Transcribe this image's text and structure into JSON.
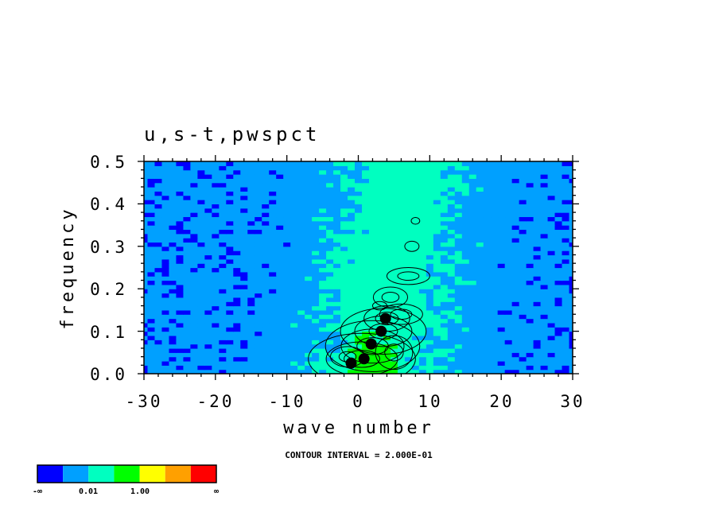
{
  "chart_data": {
    "type": "heatmap",
    "title": "u,s-t,pwspct",
    "xlabel": "wave number",
    "ylabel": "frequency",
    "xlim": [
      -30,
      30
    ],
    "ylim": [
      0.0,
      0.5
    ],
    "x_ticks": [
      "-30",
      "-20",
      "-10",
      "0",
      "10",
      "20",
      "30"
    ],
    "y_ticks": [
      "0.0",
      "0.1",
      "0.2",
      "0.3",
      "0.4",
      "0.5"
    ],
    "contour_interval_text": "CONTOUR INTERVAL = 2.000E-01",
    "colorbar": {
      "colors": [
        "#0000ff",
        "#00a0ff",
        "#00ffc0",
        "#00ff00",
        "#ffff00",
        "#ffa000",
        "#ff0000"
      ],
      "labels": [
        "-∞",
        "0.01",
        "1.00",
        "∞"
      ]
    },
    "peak_region": {
      "wave_number_range": [
        -3,
        8
      ],
      "frequency_range": [
        0.0,
        0.3
      ],
      "description_level": "values above 1.00 concentrated near wave number 0 to 5, frequency 0 to 0.15"
    }
  }
}
